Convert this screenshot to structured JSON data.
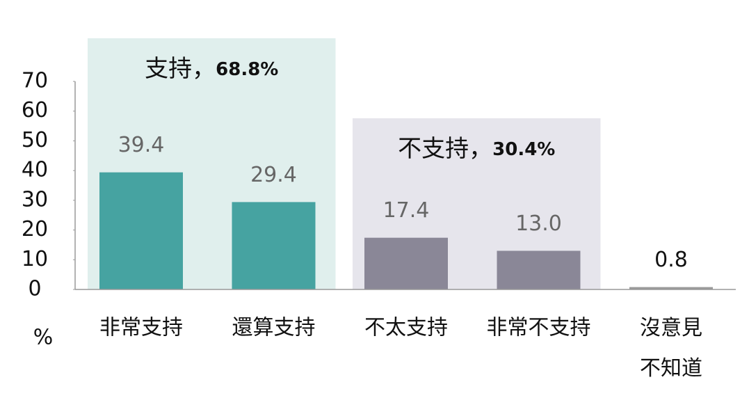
{
  "chart_data": {
    "type": "bar",
    "categories": [
      "非常支持",
      "還算支持",
      "不太支持",
      "非常不支持",
      "沒意見\n不知道"
    ],
    "values": [
      39.4,
      29.4,
      17.4,
      13.0,
      0.8
    ],
    "value_labels": [
      "39.4",
      "29.4",
      "17.4",
      "13.0",
      "0.8"
    ],
    "colors": [
      "#46a3a1",
      "#46a3a1",
      "#8a8797",
      "#8a8797",
      "#9a9a9a"
    ],
    "ylim": [
      0,
      70
    ],
    "yticks": [
      0,
      10,
      20,
      30,
      40,
      50,
      60,
      70
    ],
    "y_unit": "%",
    "groups": [
      {
        "name": "支持，",
        "total": "68.8%",
        "color": "#e0efed"
      },
      {
        "name": "不支持，",
        "total": "30.4%",
        "color": "#e6e5ec"
      }
    ]
  }
}
